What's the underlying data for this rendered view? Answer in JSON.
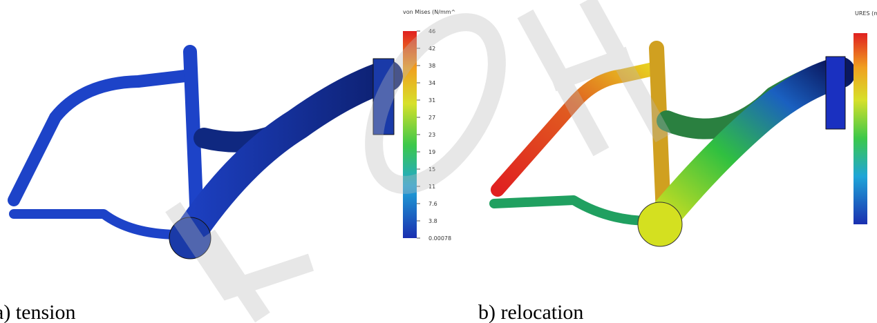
{
  "panels": [
    {
      "caption": "a) tension",
      "legend_title": "von Mises (N/mm^",
      "legend_ticks": [
        "46",
        "42",
        "38",
        "34",
        "31",
        "27",
        "23",
        "19",
        "15",
        "11",
        "7.6",
        "3.8",
        "0.00078"
      ]
    },
    {
      "caption": "b) relocation",
      "legend_title": "URES (m"
    }
  ]
}
